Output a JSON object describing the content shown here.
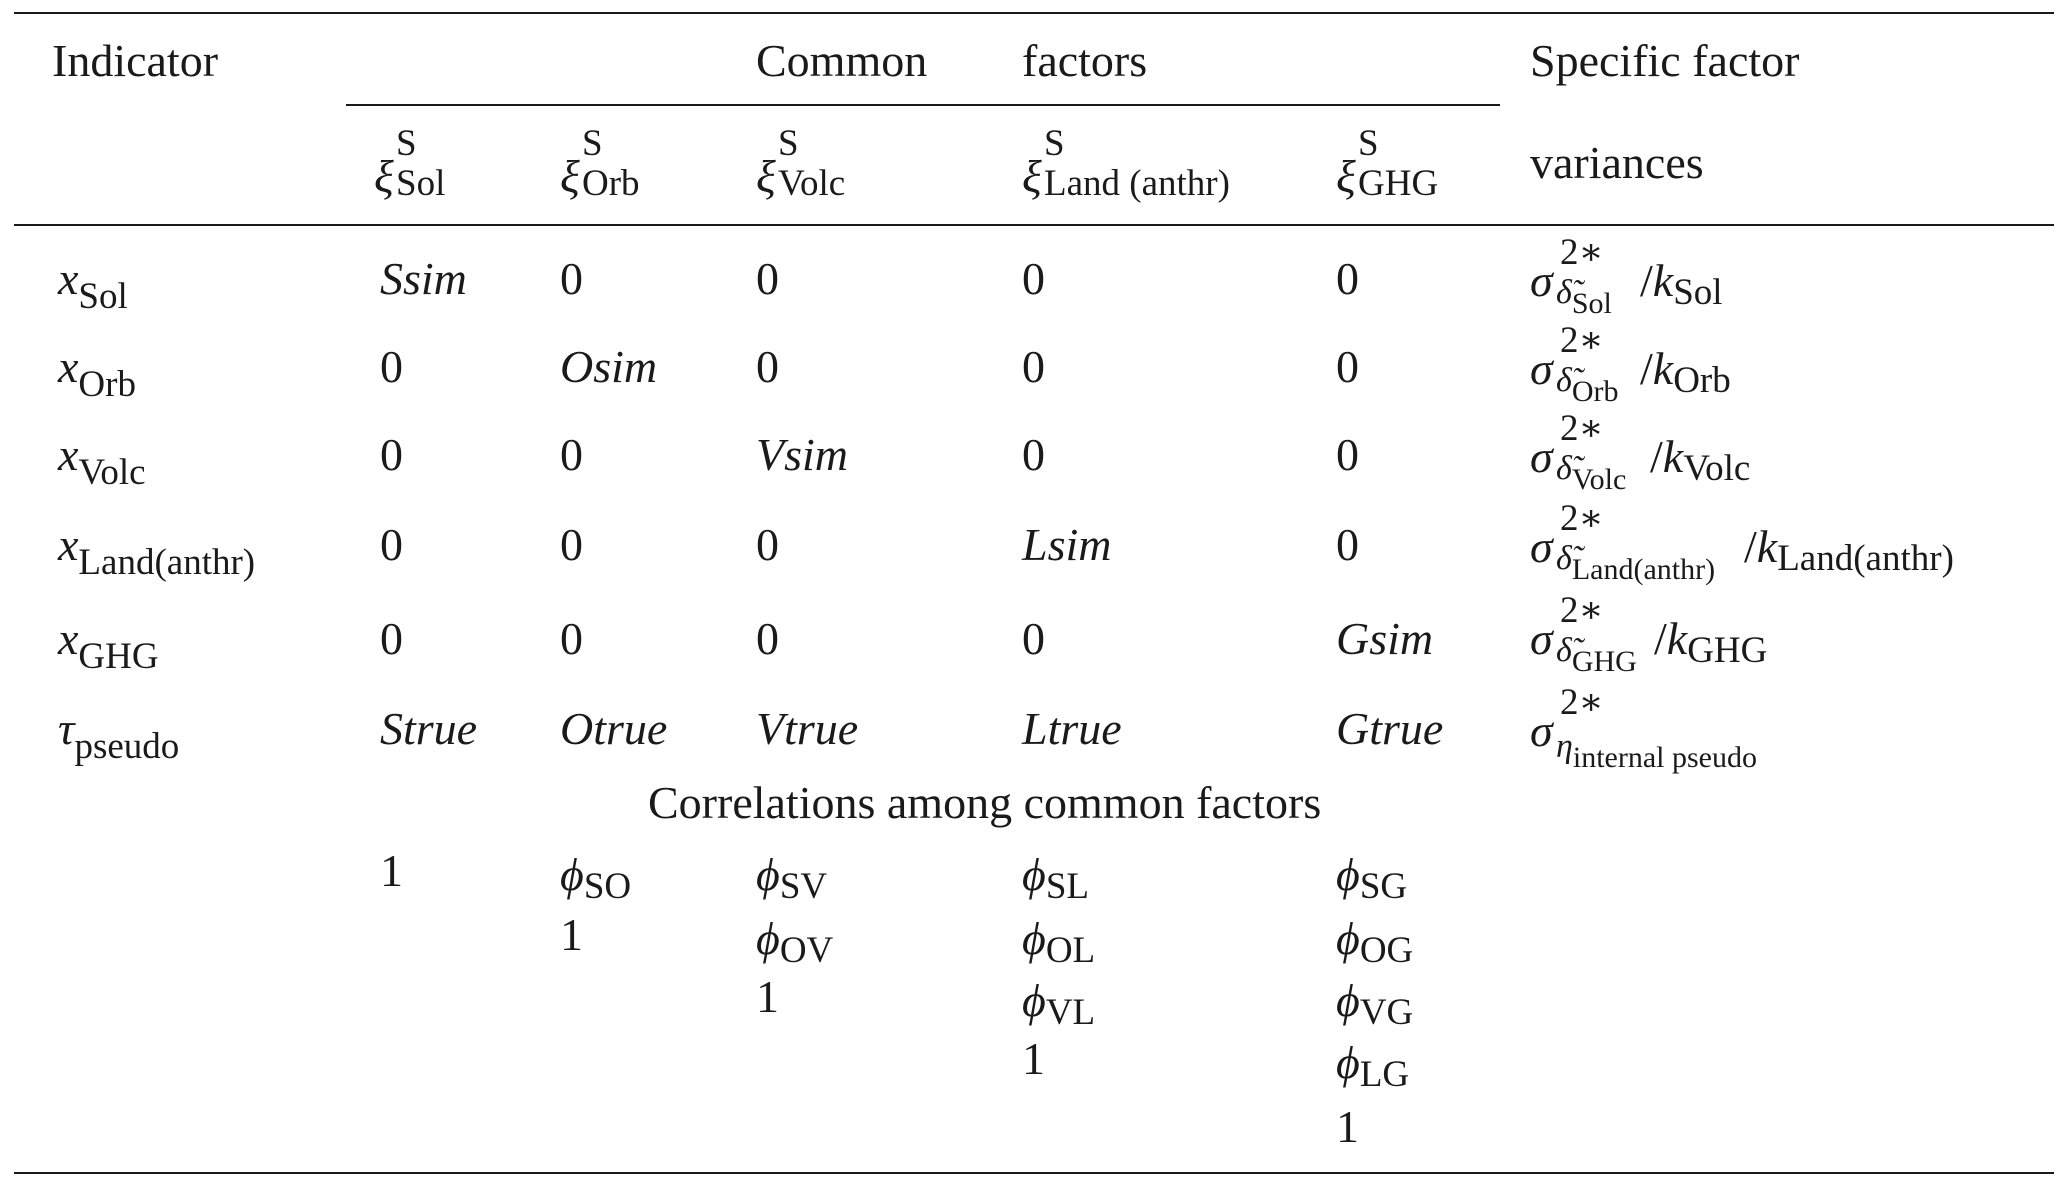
{
  "header": {
    "indicator": "Indicator",
    "common": "Common",
    "factors": "factors",
    "specific_line1": "Specific factor",
    "specific_line2": "variances",
    "factor_symbol": "ξ",
    "factor_sup": "S",
    "factor_subs": [
      "Sol",
      "Orb",
      "Volc",
      "Land (anthr)",
      "GHG"
    ]
  },
  "rows": [
    {
      "sym": "x",
      "sub": "Sol",
      "cells": [
        "Ssim",
        "0",
        "0",
        "0",
        "0"
      ],
      "var_sub": "Sol",
      "k_sub": "Sol"
    },
    {
      "sym": "x",
      "sub": "Orb",
      "cells": [
        "0",
        "Osim",
        "0",
        "0",
        "0"
      ],
      "var_sub": "Orb",
      "k_sub": "Orb"
    },
    {
      "sym": "x",
      "sub": "Volc",
      "cells": [
        "0",
        "0",
        "Vsim",
        "0",
        "0"
      ],
      "var_sub": "Volc",
      "k_sub": "Volc"
    },
    {
      "sym": "x",
      "sub": "Land(anthr)",
      "cells": [
        "0",
        "0",
        "0",
        "Lsim",
        "0"
      ],
      "var_sub": "Land(anthr)",
      "k_sub": "Land(anthr)"
    },
    {
      "sym": "x",
      "sub": "GHG",
      "cells": [
        "0",
        "0",
        "0",
        "0",
        "Gsim"
      ],
      "var_sub": "GHG",
      "k_sub": "GHG"
    },
    {
      "sym": "τ",
      "sub": "pseudo",
      "cells": [
        "Strue",
        "Otrue",
        "Vtrue",
        "Ltrue",
        "Gtrue"
      ],
      "var_sub": "internal pseudo"
    }
  ],
  "variance_sym": {
    "sigma": "σ",
    "sup": "2∗",
    "delta": "δ̃",
    "eta": "η",
    "slash": "/",
    "k": "k"
  },
  "correlations": {
    "title": "Correlations among common factors",
    "phi": "ϕ",
    "one": "1",
    "col1": [
      "1"
    ],
    "col2": [
      "SO",
      "1"
    ],
    "col3": [
      "SV",
      "OV",
      "1"
    ],
    "col4": [
      "SL",
      "OL",
      "VL",
      "1"
    ],
    "col5": [
      "SG",
      "OG",
      "VG",
      "LG",
      "1"
    ]
  }
}
